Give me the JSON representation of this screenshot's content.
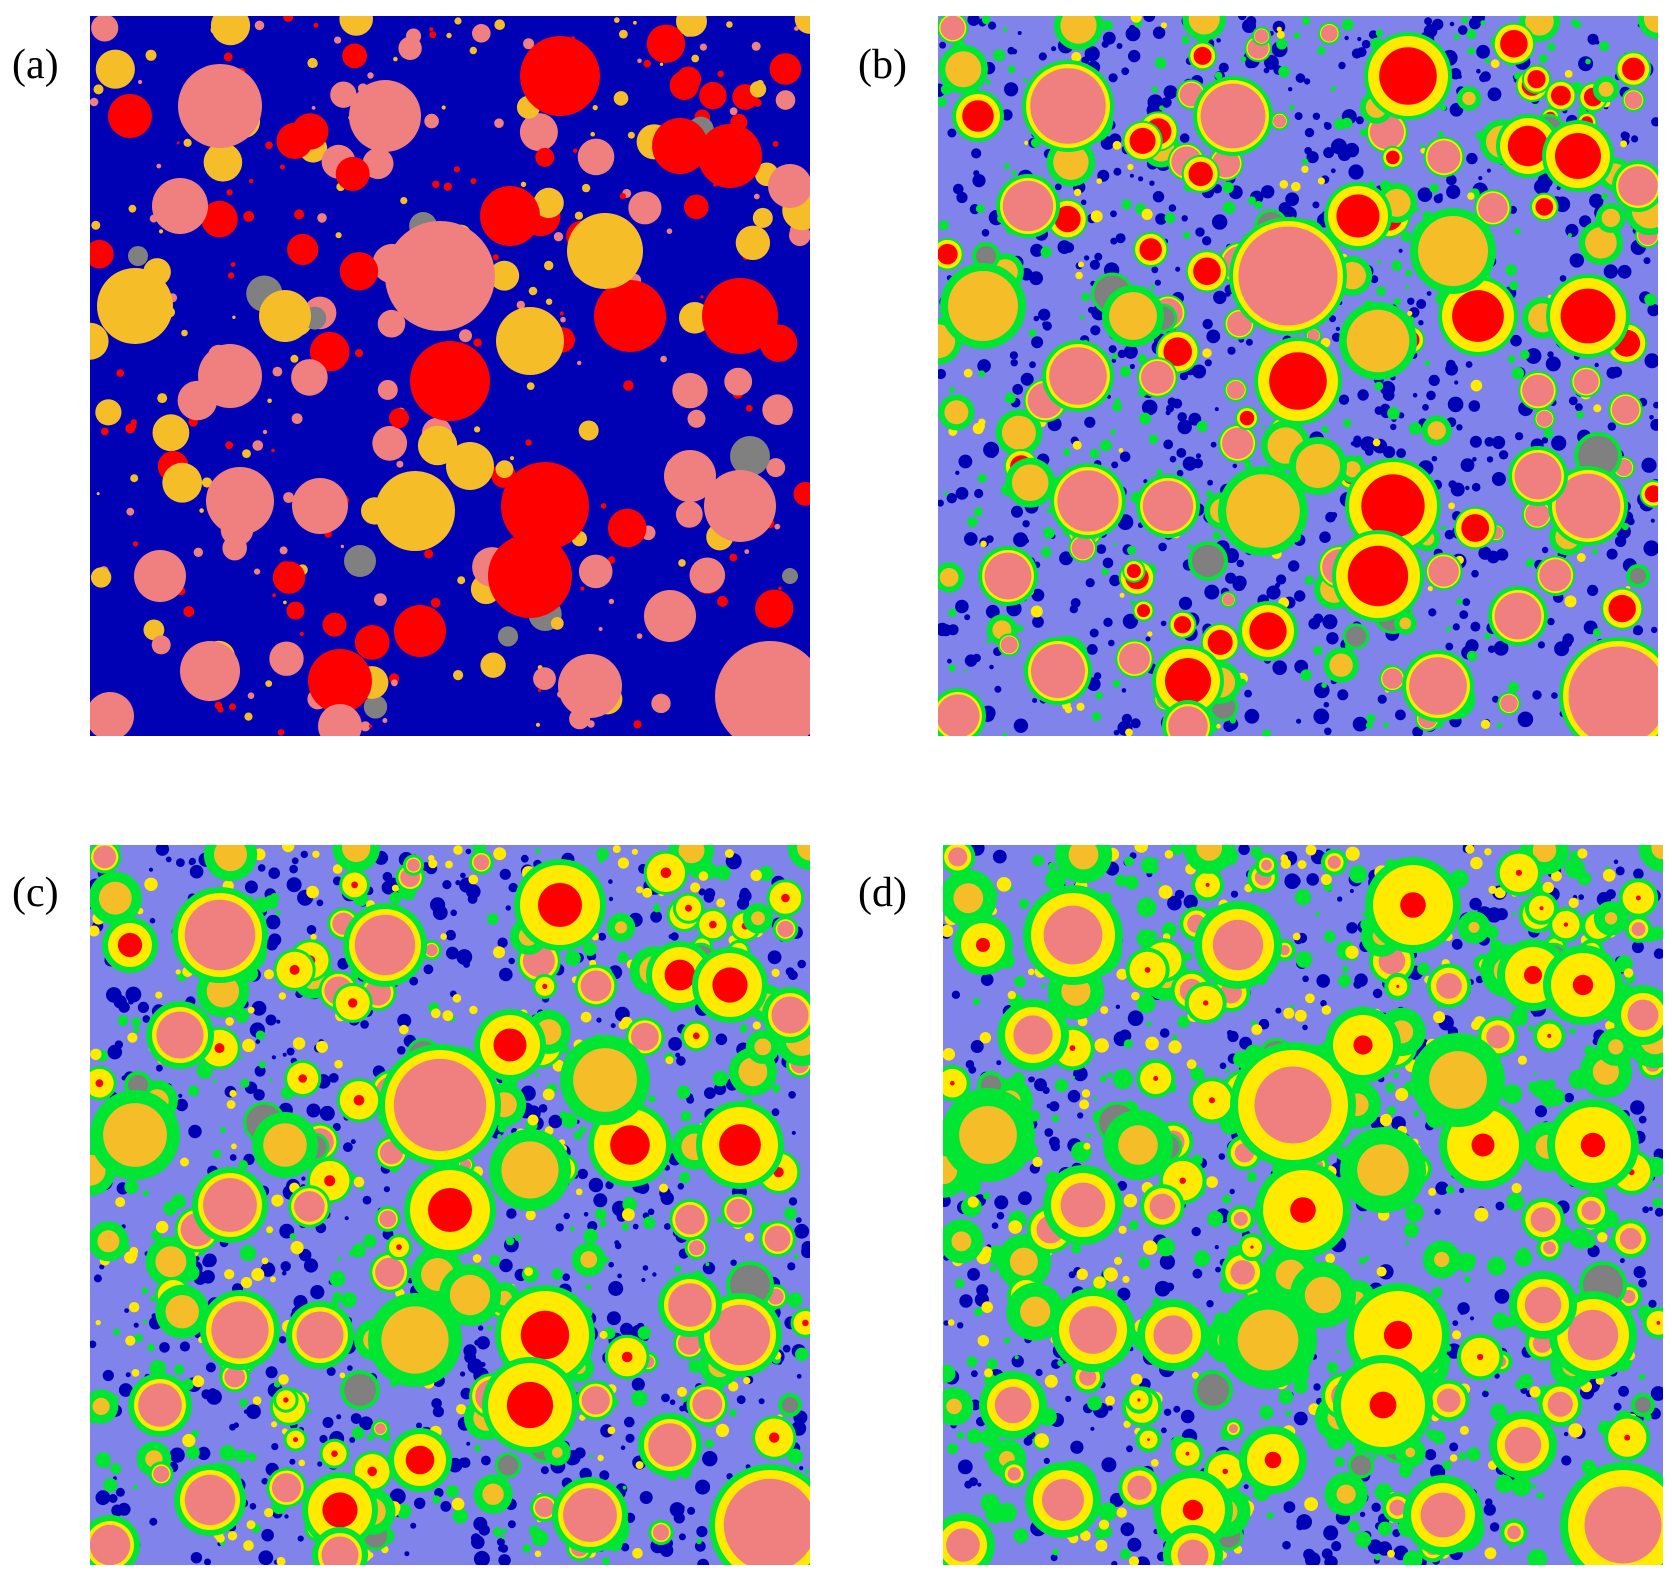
{
  "figure": {
    "panels": [
      {
        "id": "a",
        "label": "(a)",
        "stage": 0
      },
      {
        "id": "b",
        "label": "(b)",
        "stage": 1
      },
      {
        "id": "c",
        "label": "(c)",
        "stage": 2
      },
      {
        "id": "d",
        "label": "(d)",
        "stage": 3
      }
    ]
  },
  "colors": {
    "matrix_dark_blue": "#0000b4",
    "matrix_light_blue": "#7f83ea",
    "hydrate_green": "#00e632",
    "rim_yellow": "#ffea00",
    "core_red": "#ff0000",
    "core_pink": "#f08080",
    "core_orange": "#f5be28",
    "inert_grey": "#808080"
  }
}
